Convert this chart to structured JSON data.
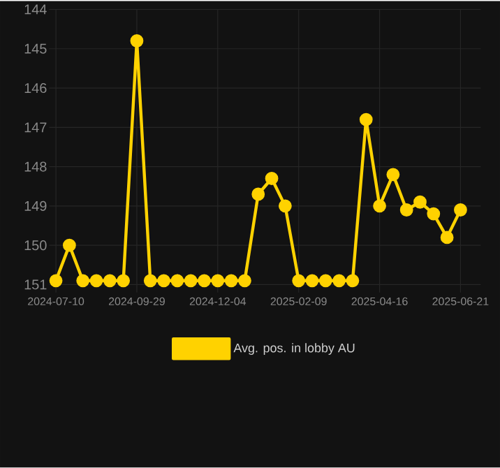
{
  "chart_data": {
    "type": "line",
    "categories": [
      "2024-07-10",
      null,
      null,
      null,
      null,
      null,
      "2024-09-29",
      null,
      null,
      null,
      null,
      null,
      "2024-12-04",
      null,
      null,
      null,
      null,
      null,
      "2025-02-09",
      null,
      null,
      null,
      null,
      null,
      "2025-04-16",
      null,
      null,
      null,
      null,
      null,
      "2025-06-21"
    ],
    "series": [
      {
        "name": "Avg. pos. in lobby AU",
        "color": "#ffd200",
        "values": [
          150.9,
          150.0,
          150.9,
          150.9,
          150.9,
          150.9,
          144.8,
          150.9,
          150.9,
          150.9,
          150.9,
          150.9,
          150.9,
          150.9,
          150.9,
          148.7,
          148.3,
          149.0,
          150.9,
          150.9,
          150.9,
          150.9,
          150.9,
          146.8,
          149.0,
          148.2,
          149.1,
          148.9,
          149.2,
          149.8,
          149.1
        ]
      }
    ],
    "ylim": [
      151.2,
      144
    ],
    "yticks": [
      144,
      145,
      146,
      147,
      148,
      149,
      150,
      151
    ],
    "grid": true,
    "legend": "bottom",
    "marker": "circle",
    "line_style": "solid"
  }
}
